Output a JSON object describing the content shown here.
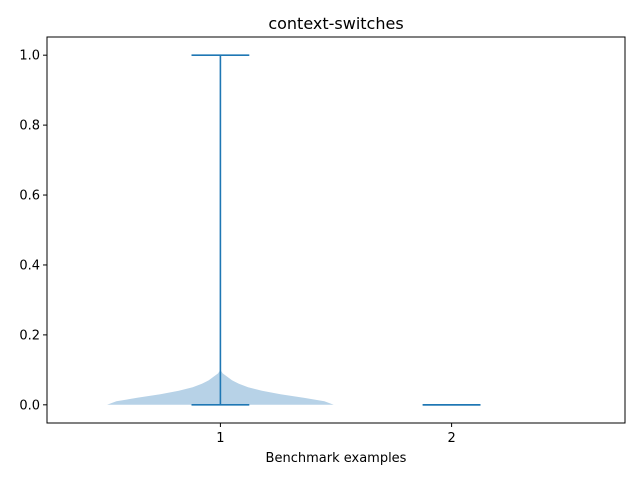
{
  "chart_data": {
    "type": "violin",
    "title": "context-switches",
    "xlabel": "Benchmark examples",
    "ylabel": "",
    "categories": [
      "1",
      "2"
    ],
    "ylim": [
      -0.052,
      1.052
    ],
    "yticks": [
      0.0,
      0.2,
      0.4,
      0.6,
      0.8,
      1.0
    ],
    "ytick_labels": [
      "0.0",
      "0.2",
      "0.4",
      "0.6",
      "0.8",
      "1.0"
    ],
    "grid": false,
    "color": "#1f77b4",
    "body_color": "#b7d2e7",
    "violins": [
      {
        "category": "1",
        "min": 0.0,
        "max": 1.0,
        "density": [
          {
            "y": 0.0,
            "halfwidth": 0.49
          },
          {
            "y": 0.01,
            "halfwidth": 0.45
          },
          {
            "y": 0.02,
            "halfwidth": 0.36
          },
          {
            "y": 0.03,
            "halfwidth": 0.26
          },
          {
            "y": 0.04,
            "halfwidth": 0.18
          },
          {
            "y": 0.05,
            "halfwidth": 0.12
          },
          {
            "y": 0.06,
            "halfwidth": 0.08
          },
          {
            "y": 0.07,
            "halfwidth": 0.05
          },
          {
            "y": 0.08,
            "halfwidth": 0.03
          },
          {
            "y": 0.09,
            "halfwidth": 0.01
          },
          {
            "y": 0.1,
            "halfwidth": 0.0
          }
        ]
      },
      {
        "category": "2",
        "min": 0.0,
        "max": 0.0,
        "density": []
      }
    ]
  }
}
